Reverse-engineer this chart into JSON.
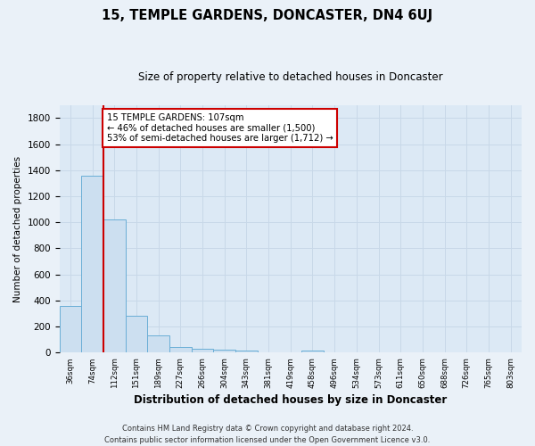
{
  "title": "15, TEMPLE GARDENS, DONCASTER, DN4 6UJ",
  "subtitle": "Size of property relative to detached houses in Doncaster",
  "xlabel": "Distribution of detached houses by size in Doncaster",
  "ylabel": "Number of detached properties",
  "categories": [
    "36sqm",
    "74sqm",
    "112sqm",
    "151sqm",
    "189sqm",
    "227sqm",
    "266sqm",
    "304sqm",
    "343sqm",
    "381sqm",
    "419sqm",
    "458sqm",
    "496sqm",
    "534sqm",
    "573sqm",
    "611sqm",
    "650sqm",
    "688sqm",
    "726sqm",
    "765sqm",
    "803sqm"
  ],
  "values": [
    360,
    1360,
    1020,
    285,
    130,
    45,
    30,
    20,
    15,
    0,
    0,
    18,
    0,
    0,
    0,
    0,
    0,
    0,
    0,
    0,
    0
  ],
  "bar_color": "#ccdff0",
  "bar_edge_color": "#6aaed6",
  "bar_width": 1.0,
  "red_line_x": 1.5,
  "annotation_line1": "15 TEMPLE GARDENS: 107sqm",
  "annotation_line2": "← 46% of detached houses are smaller (1,500)",
  "annotation_line3": "53% of semi-detached houses are larger (1,712) →",
  "annotation_box_color": "#ffffff",
  "annotation_box_edge": "#cc0000",
  "red_line_color": "#cc0000",
  "ylim": [
    0,
    1900
  ],
  "yticks": [
    0,
    200,
    400,
    600,
    800,
    1000,
    1200,
    1400,
    1600,
    1800
  ],
  "grid_color": "#c8d8e8",
  "bg_color": "#dce9f5",
  "fig_bg_color": "#eaf1f8",
  "footer_line1": "Contains HM Land Registry data © Crown copyright and database right 2024.",
  "footer_line2": "Contains public sector information licensed under the Open Government Licence v3.0."
}
